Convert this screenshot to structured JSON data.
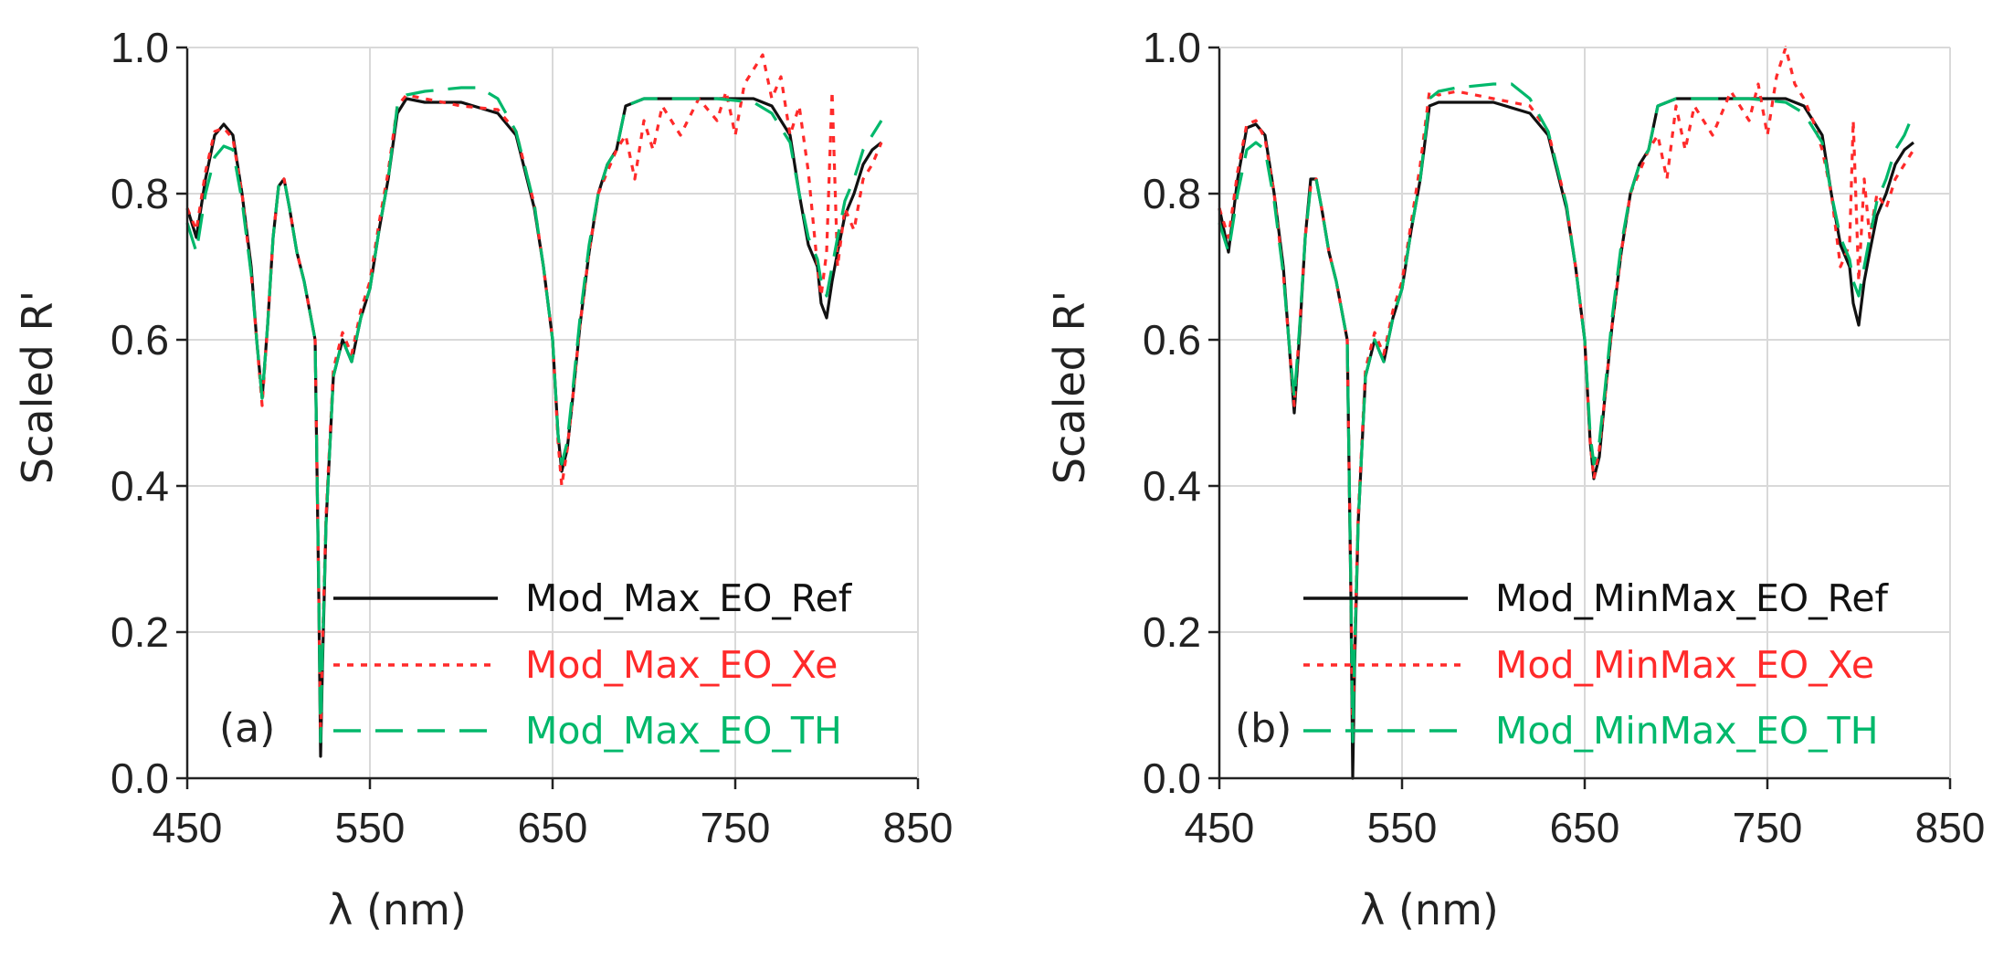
{
  "colors": {
    "ref": "#111111",
    "xe": "#ff2a2a",
    "th": "#00b86b",
    "grid": "#d9d9d9",
    "axis": "#222222"
  },
  "chart_data": [
    {
      "type": "line",
      "panel": "(a)",
      "xlabel": "λ (nm)",
      "ylabel": "Scaled R'",
      "xlim": [
        450,
        850
      ],
      "ylim": [
        0,
        1.0
      ],
      "xticks": [
        "450",
        "550",
        "650",
        "750",
        "850"
      ],
      "yticks": [
        "0.0",
        "0.2",
        "0.4",
        "0.6",
        "0.8",
        "1.0"
      ],
      "legend_position": "bottom-right",
      "series": [
        {
          "name": "Mod_Max_EO_Ref",
          "style": "solid",
          "color": "#111111",
          "x": [
            450,
            455,
            460,
            465,
            470,
            475,
            480,
            485,
            488,
            491,
            494,
            497,
            500,
            503,
            506,
            510,
            514,
            517,
            520,
            522,
            523,
            524,
            526,
            530,
            535,
            540,
            545,
            550,
            555,
            560,
            565,
            570,
            580,
            600,
            620,
            630,
            640,
            645,
            650,
            653,
            655,
            658,
            661,
            665,
            670,
            675,
            680,
            685,
            690,
            700,
            720,
            740,
            760,
            770,
            780,
            785,
            790,
            795,
            797,
            800,
            803,
            806,
            810,
            815,
            820,
            825,
            830
          ],
          "y": [
            0.78,
            0.74,
            0.82,
            0.88,
            0.895,
            0.88,
            0.8,
            0.7,
            0.6,
            0.52,
            0.62,
            0.74,
            0.81,
            0.82,
            0.78,
            0.72,
            0.68,
            0.64,
            0.6,
            0.25,
            0.03,
            0.15,
            0.35,
            0.55,
            0.6,
            0.57,
            0.63,
            0.67,
            0.75,
            0.82,
            0.91,
            0.93,
            0.925,
            0.925,
            0.91,
            0.88,
            0.78,
            0.7,
            0.6,
            0.47,
            0.42,
            0.45,
            0.52,
            0.62,
            0.72,
            0.8,
            0.84,
            0.86,
            0.92,
            0.93,
            0.93,
            0.93,
            0.93,
            0.92,
            0.88,
            0.8,
            0.73,
            0.7,
            0.65,
            0.63,
            0.68,
            0.72,
            0.77,
            0.8,
            0.84,
            0.86,
            0.87
          ]
        },
        {
          "name": "Mod_Max_EO_Xe",
          "style": "dotted",
          "color": "#ff2a2a",
          "x": [
            450,
            455,
            460,
            465,
            470,
            475,
            480,
            485,
            488,
            491,
            494,
            497,
            500,
            503,
            506,
            510,
            514,
            517,
            520,
            522,
            523,
            524,
            526,
            530,
            535,
            540,
            545,
            550,
            555,
            560,
            565,
            570,
            580,
            600,
            620,
            630,
            640,
            645,
            650,
            653,
            655,
            658,
            661,
            665,
            670,
            675,
            680,
            685,
            690,
            695,
            700,
            705,
            710,
            720,
            730,
            740,
            745,
            750,
            755,
            760,
            765,
            770,
            775,
            780,
            785,
            790,
            795,
            797,
            800,
            803,
            806,
            810,
            815,
            820,
            825,
            830
          ],
          "y": [
            0.78,
            0.75,
            0.83,
            0.885,
            0.89,
            0.875,
            0.8,
            0.69,
            0.6,
            0.51,
            0.62,
            0.74,
            0.81,
            0.82,
            0.78,
            0.72,
            0.68,
            0.64,
            0.6,
            0.26,
            0.06,
            0.18,
            0.36,
            0.56,
            0.61,
            0.58,
            0.64,
            0.68,
            0.76,
            0.83,
            0.92,
            0.935,
            0.93,
            0.92,
            0.915,
            0.885,
            0.785,
            0.7,
            0.6,
            0.46,
            0.4,
            0.45,
            0.52,
            0.62,
            0.72,
            0.8,
            0.83,
            0.86,
            0.88,
            0.82,
            0.9,
            0.86,
            0.92,
            0.88,
            0.93,
            0.9,
            0.94,
            0.88,
            0.95,
            0.97,
            0.99,
            0.93,
            0.96,
            0.88,
            0.92,
            0.83,
            0.7,
            0.66,
            0.72,
            0.94,
            0.7,
            0.78,
            0.75,
            0.82,
            0.84,
            0.87
          ]
        },
        {
          "name": "Mod_Max_EO_TH",
          "style": "dashed",
          "color": "#00b86b",
          "x": [
            450,
            455,
            460,
            465,
            470,
            475,
            480,
            485,
            488,
            491,
            494,
            497,
            500,
            503,
            506,
            510,
            514,
            517,
            520,
            522,
            523,
            524,
            526,
            530,
            535,
            540,
            545,
            550,
            555,
            560,
            565,
            570,
            580,
            600,
            610,
            620,
            630,
            640,
            645,
            650,
            653,
            655,
            658,
            661,
            665,
            670,
            675,
            680,
            685,
            690,
            700,
            720,
            740,
            760,
            770,
            780,
            785,
            790,
            795,
            797,
            800,
            803,
            806,
            810,
            815,
            820,
            825,
            830
          ],
          "y": [
            0.76,
            0.72,
            0.8,
            0.85,
            0.865,
            0.86,
            0.79,
            0.69,
            0.6,
            0.52,
            0.62,
            0.74,
            0.81,
            0.82,
            0.78,
            0.72,
            0.68,
            0.64,
            0.6,
            0.26,
            0.05,
            0.17,
            0.35,
            0.55,
            0.6,
            0.57,
            0.63,
            0.67,
            0.75,
            0.82,
            0.92,
            0.935,
            0.94,
            0.945,
            0.945,
            0.93,
            0.885,
            0.785,
            0.7,
            0.6,
            0.47,
            0.43,
            0.46,
            0.53,
            0.63,
            0.73,
            0.8,
            0.84,
            0.86,
            0.92,
            0.93,
            0.93,
            0.93,
            0.925,
            0.91,
            0.87,
            0.8,
            0.74,
            0.71,
            0.68,
            0.66,
            0.7,
            0.74,
            0.79,
            0.82,
            0.86,
            0.88,
            0.9
          ]
        }
      ]
    },
    {
      "type": "line",
      "panel": "(b)",
      "xlabel": "λ (nm)",
      "ylabel": "Scaled R'",
      "xlim": [
        450,
        850
      ],
      "ylim": [
        0,
        1.0
      ],
      "xticks": [
        "450",
        "550",
        "650",
        "750",
        "850"
      ],
      "yticks": [
        "0.0",
        "0.2",
        "0.4",
        "0.6",
        "0.8",
        "1.0"
      ],
      "legend_position": "bottom-right",
      "series": [
        {
          "name": "Mod_MinMax_EO_Ref",
          "style": "solid",
          "color": "#111111",
          "x": [
            450,
            455,
            460,
            465,
            470,
            475,
            480,
            485,
            488,
            491,
            494,
            497,
            500,
            503,
            506,
            510,
            514,
            517,
            520,
            522,
            523,
            524,
            526,
            530,
            535,
            540,
            545,
            550,
            555,
            560,
            565,
            570,
            580,
            600,
            620,
            630,
            640,
            645,
            650,
            653,
            655,
            658,
            661,
            665,
            670,
            675,
            680,
            685,
            690,
            700,
            720,
            740,
            760,
            770,
            780,
            785,
            790,
            795,
            797,
            800,
            803,
            806,
            810,
            815,
            820,
            825,
            830
          ],
          "y": [
            0.78,
            0.72,
            0.82,
            0.89,
            0.895,
            0.88,
            0.8,
            0.7,
            0.6,
            0.5,
            0.61,
            0.74,
            0.82,
            0.82,
            0.78,
            0.72,
            0.68,
            0.64,
            0.6,
            0.25,
            0.0,
            0.15,
            0.35,
            0.55,
            0.6,
            0.57,
            0.63,
            0.67,
            0.75,
            0.82,
            0.92,
            0.925,
            0.925,
            0.925,
            0.91,
            0.88,
            0.78,
            0.7,
            0.6,
            0.46,
            0.41,
            0.44,
            0.52,
            0.62,
            0.72,
            0.8,
            0.84,
            0.86,
            0.92,
            0.93,
            0.93,
            0.93,
            0.93,
            0.92,
            0.88,
            0.8,
            0.73,
            0.7,
            0.65,
            0.62,
            0.68,
            0.72,
            0.77,
            0.8,
            0.84,
            0.86,
            0.87
          ]
        },
        {
          "name": "Mod_MinMax_EO_Xe",
          "style": "dotted",
          "color": "#ff2a2a",
          "x": [
            450,
            455,
            460,
            465,
            470,
            475,
            480,
            485,
            488,
            491,
            494,
            497,
            500,
            503,
            506,
            510,
            514,
            517,
            520,
            522,
            523,
            524,
            526,
            530,
            535,
            540,
            545,
            550,
            555,
            560,
            565,
            570,
            580,
            600,
            620,
            630,
            640,
            645,
            650,
            653,
            655,
            658,
            661,
            665,
            670,
            675,
            680,
            685,
            690,
            695,
            700,
            705,
            710,
            720,
            730,
            740,
            745,
            750,
            755,
            760,
            765,
            770,
            775,
            780,
            785,
            790,
            795,
            797,
            800,
            803,
            806,
            810,
            815,
            820,
            825,
            830
          ],
          "y": [
            0.78,
            0.74,
            0.83,
            0.895,
            0.9,
            0.875,
            0.8,
            0.69,
            0.6,
            0.51,
            0.62,
            0.74,
            0.81,
            0.82,
            0.78,
            0.72,
            0.68,
            0.64,
            0.6,
            0.26,
            0.06,
            0.18,
            0.36,
            0.56,
            0.61,
            0.58,
            0.64,
            0.68,
            0.76,
            0.84,
            0.94,
            0.935,
            0.94,
            0.93,
            0.92,
            0.885,
            0.785,
            0.7,
            0.6,
            0.46,
            0.41,
            0.45,
            0.52,
            0.62,
            0.72,
            0.8,
            0.83,
            0.86,
            0.88,
            0.82,
            0.92,
            0.86,
            0.92,
            0.88,
            0.94,
            0.9,
            0.95,
            0.88,
            0.96,
            1.0,
            0.95,
            0.93,
            0.9,
            0.86,
            0.8,
            0.7,
            0.73,
            0.9,
            0.68,
            0.82,
            0.74,
            0.8,
            0.78,
            0.82,
            0.84,
            0.86
          ]
        },
        {
          "name": "Mod_MinMax_EO_TH",
          "style": "dashed",
          "color": "#00b86b",
          "x": [
            450,
            455,
            460,
            465,
            470,
            475,
            480,
            485,
            488,
            491,
            494,
            497,
            500,
            503,
            506,
            510,
            514,
            517,
            520,
            522,
            523,
            524,
            526,
            530,
            535,
            540,
            545,
            550,
            555,
            560,
            565,
            570,
            580,
            600,
            610,
            620,
            630,
            640,
            645,
            650,
            653,
            655,
            658,
            661,
            665,
            670,
            675,
            680,
            685,
            690,
            700,
            720,
            740,
            760,
            770,
            780,
            785,
            790,
            795,
            797,
            800,
            803,
            806,
            810,
            815,
            820,
            825,
            830
          ],
          "y": [
            0.76,
            0.72,
            0.8,
            0.86,
            0.87,
            0.86,
            0.79,
            0.69,
            0.6,
            0.52,
            0.62,
            0.74,
            0.81,
            0.82,
            0.78,
            0.72,
            0.68,
            0.64,
            0.6,
            0.26,
            0.05,
            0.17,
            0.35,
            0.55,
            0.6,
            0.57,
            0.63,
            0.67,
            0.75,
            0.82,
            0.93,
            0.94,
            0.945,
            0.95,
            0.95,
            0.93,
            0.885,
            0.785,
            0.7,
            0.6,
            0.47,
            0.43,
            0.46,
            0.53,
            0.63,
            0.73,
            0.8,
            0.84,
            0.86,
            0.92,
            0.93,
            0.93,
            0.93,
            0.925,
            0.91,
            0.87,
            0.8,
            0.74,
            0.71,
            0.68,
            0.66,
            0.7,
            0.74,
            0.79,
            0.82,
            0.86,
            0.88,
            0.91
          ]
        }
      ]
    }
  ]
}
